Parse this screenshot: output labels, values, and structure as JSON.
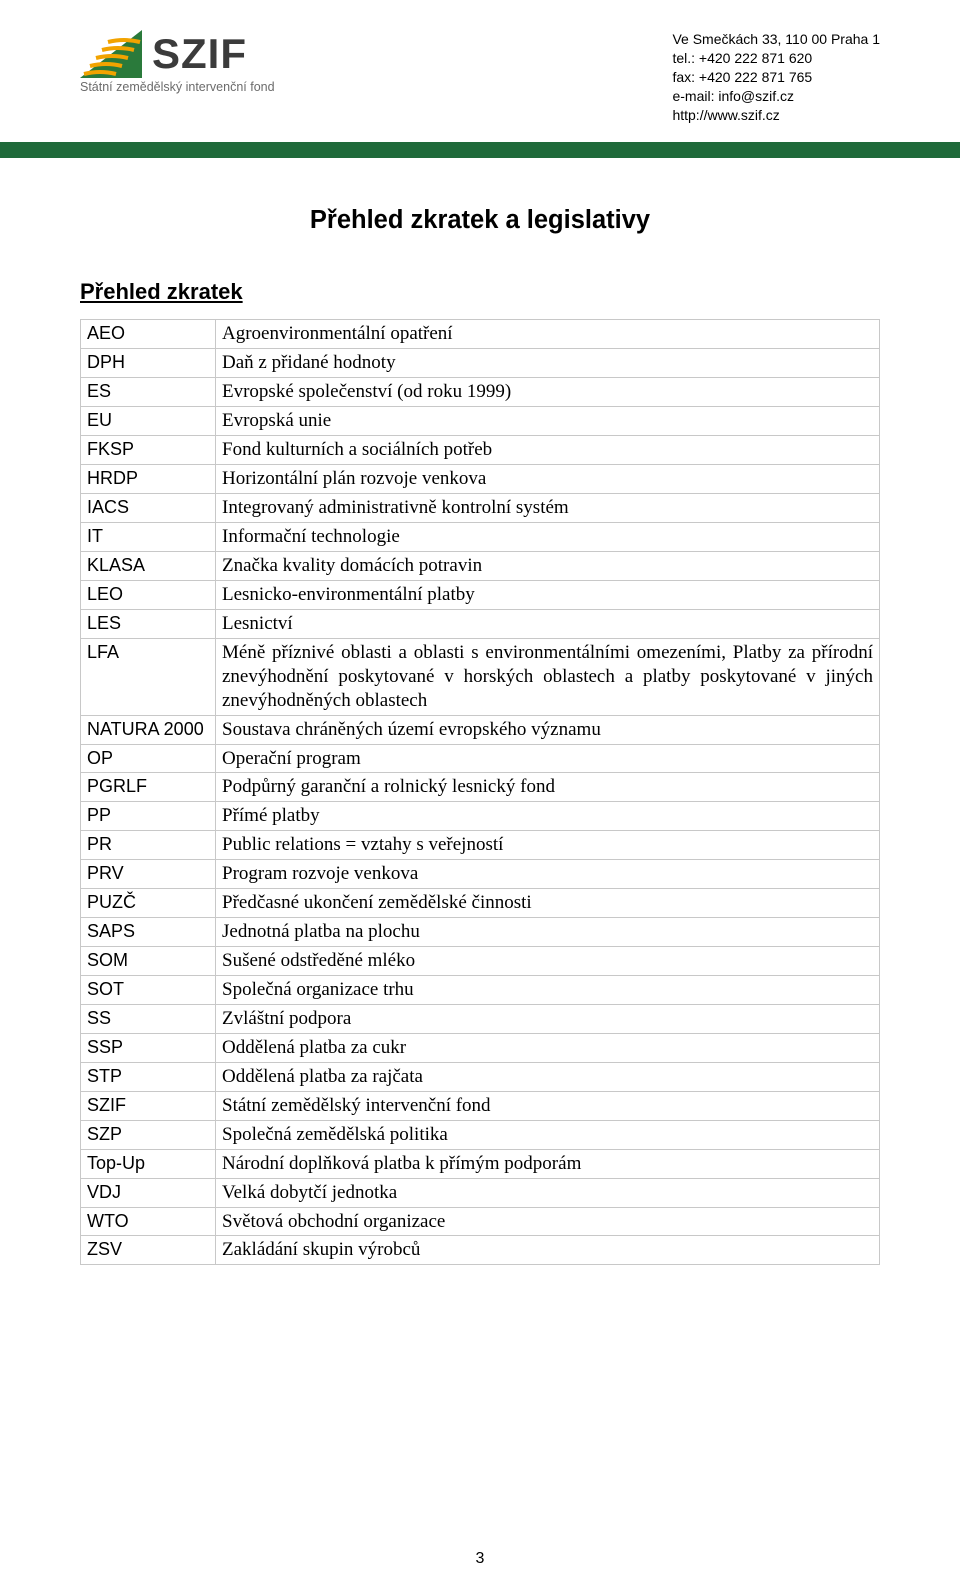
{
  "header": {
    "logo_text": "SZIF",
    "logo_subtitle": "Státní zemědělský intervenční fond",
    "logo_colors": {
      "green": "#2a7a3b",
      "orange": "#f2a300",
      "border": "#2a7a3b"
    },
    "contact": {
      "address": "Ve Smečkách 33, 110 00 Praha 1",
      "tel": "tel.: +420 222 871 620",
      "fax": "fax: +420 222 871 765",
      "email": "e-mail: info@szif.cz",
      "web": "http://www.szif.cz"
    }
  },
  "bar_color": "#1f6a3a",
  "title": "Přehled zkratek a legislativy",
  "section_heading": "Přehled zkratek",
  "table": {
    "border_color": "#c8c8c8",
    "col_widths": [
      "135px",
      "auto"
    ],
    "rows": [
      {
        "k": "AEO",
        "v": "Agroenvironmentální opatření"
      },
      {
        "k": "DPH",
        "v": "Daň z přidané hodnoty"
      },
      {
        "k": "ES",
        "v": "Evropské společenství (od roku 1999)"
      },
      {
        "k": "EU",
        "v": "Evropská unie"
      },
      {
        "k": "FKSP",
        "v": "Fond kulturních a sociálních potřeb"
      },
      {
        "k": "HRDP",
        "v": "Horizontální plán rozvoje venkova"
      },
      {
        "k": "IACS",
        "v": "Integrovaný administrativně kontrolní systém"
      },
      {
        "k": "IT",
        "v": "Informační technologie"
      },
      {
        "k": "KLASA",
        "v": "Značka kvality domácích potravin"
      },
      {
        "k": "LEO",
        "v": "Lesnicko-environmentální platby"
      },
      {
        "k": "LES",
        "v": "Lesnictví"
      },
      {
        "k": "LFA",
        "v": "Méně příznivé oblasti a oblasti s environmentálními omezeními, Platby za přírodní znevýhodnění poskytované v horských oblastech a platby poskytované v jiných znevýhodněných oblastech"
      },
      {
        "k": "NATURA 2000",
        "v": "Soustava chráněných území evropského významu"
      },
      {
        "k": "OP",
        "v": "Operační program"
      },
      {
        "k": "PGRLF",
        "v": "Podpůrný garanční a rolnický lesnický fond"
      },
      {
        "k": "PP",
        "v": "Přímé platby"
      },
      {
        "k": "PR",
        "v": "Public relations = vztahy s veřejností"
      },
      {
        "k": "PRV",
        "v": "Program rozvoje venkova"
      },
      {
        "k": "PUZČ",
        "v": "Předčasné ukončení zemědělské činnosti"
      },
      {
        "k": "SAPS",
        "v": "Jednotná platba na plochu"
      },
      {
        "k": "SOM",
        "v": "Sušené odstředěné mléko"
      },
      {
        "k": "SOT",
        "v": "Společná organizace trhu"
      },
      {
        "k": "SS",
        "v": "Zvláštní podpora"
      },
      {
        "k": "SSP",
        "v": "Oddělená platba za cukr"
      },
      {
        "k": "STP",
        "v": "Oddělená platba za rajčata"
      },
      {
        "k": "SZIF",
        "v": "Státní zemědělský intervenční fond"
      },
      {
        "k": "SZP",
        "v": "Společná zemědělská politika"
      },
      {
        "k": "Top-Up",
        "v": "Národní doplňková platba k přímým podporám"
      },
      {
        "k": "VDJ",
        "v": "Velká dobytčí jednotka"
      },
      {
        "k": "WTO",
        "v": "Světová obchodní organizace"
      },
      {
        "k": "ZSV",
        "v": "Zakládání skupin výrobců"
      }
    ]
  },
  "page_number": "3"
}
